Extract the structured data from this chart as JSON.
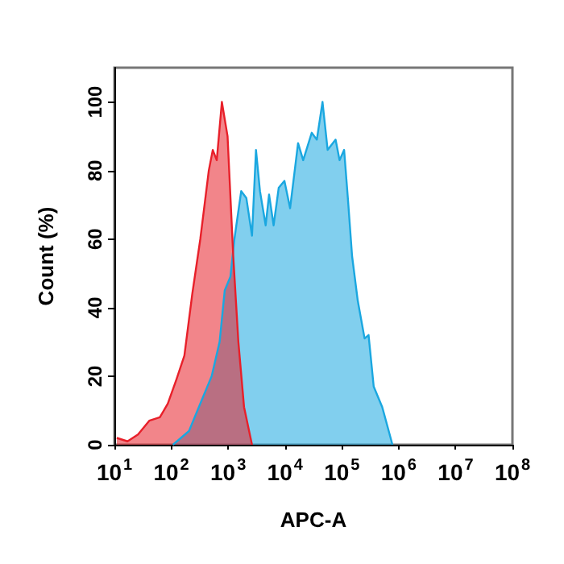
{
  "chart_data": {
    "type": "area",
    "xlabel": "APC-A",
    "ylabel": "Count (%)",
    "log": "x",
    "grid": false,
    "marker": "none",
    "line_style": "solid",
    "xlim": [
      10,
      100000000
    ],
    "xticks": [
      {
        "value": 10,
        "label": "10$^{1}$"
      },
      {
        "value": 100,
        "label": "10$^{2}$"
      },
      {
        "value": 1000,
        "label": "10$^{3}$"
      },
      {
        "value": 10000,
        "label": "10$^{4}$"
      },
      {
        "value": 100000,
        "label": "10$^{5}$"
      },
      {
        "value": 1000000,
        "label": "10$^{6}$"
      },
      {
        "value": 10000000,
        "label": "10$^{7}$"
      },
      {
        "value": 100000000,
        "label": "10$^{8}$"
      }
    ],
    "ylim": [
      0,
      110
    ],
    "yticks": [
      0,
      20,
      40,
      60,
      80,
      100
    ],
    "series": [
      {
        "color": "#1aa7e0",
        "x": [
          107,
          205,
          363,
          513,
          708,
          871,
          1096,
          1288,
          1698,
          2089,
          2630,
          3090,
          3630,
          4571,
          5248,
          6310,
          7762,
          9772,
          12300,
          16980,
          20890,
          29510,
          36300,
          45710,
          56230,
          77620,
          91200,
          109600,
          128800,
          151400,
          190500,
          251200,
          295100,
          363100,
          512900,
          776200
        ],
        "values": [
          0,
          4,
          14,
          20,
          30,
          45,
          49,
          60,
          74,
          72,
          61,
          86,
          74,
          64,
          73,
          64,
          75,
          77,
          69,
          88,
          83,
          91,
          89,
          100,
          86,
          89,
          83,
          86,
          71,
          55,
          42,
          31,
          32,
          17,
          11,
          0
        ]
      },
      {
        "color": "#e8202a",
        "x": [
          11,
          17,
          26,
          41,
          63,
          87,
          123,
          170,
          234,
          324,
          457,
          537,
          631,
          776,
          977,
          1230,
          1514,
          1905,
          2630
        ],
        "values": [
          2,
          1,
          3,
          7,
          8,
          12,
          19,
          26,
          44,
          60,
          80,
          86,
          83,
          100,
          90,
          55,
          30,
          11,
          0
        ]
      }
    ]
  }
}
